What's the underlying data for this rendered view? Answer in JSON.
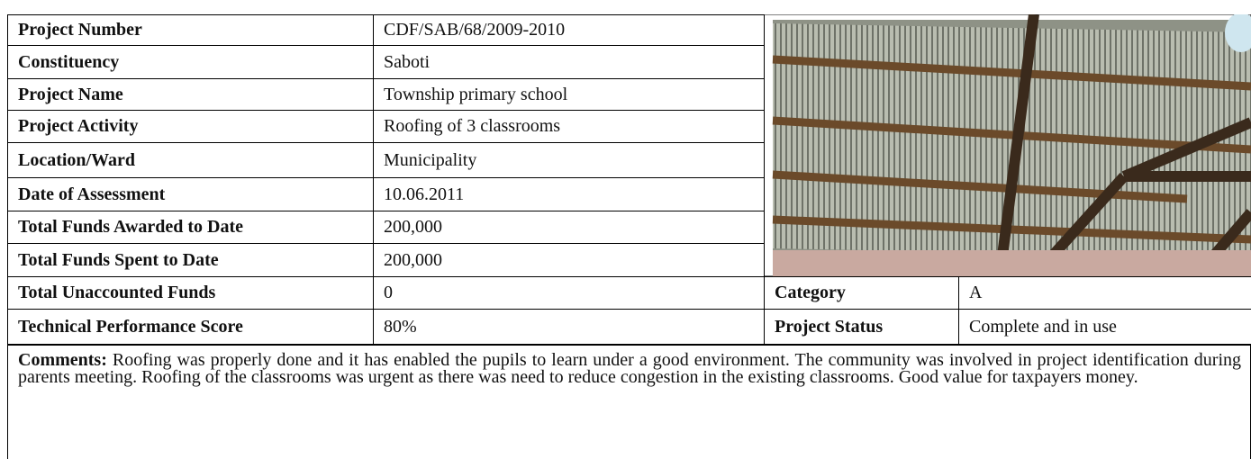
{
  "table": {
    "rows": [
      [
        "Project Number",
        "CDF/SAB/68/2009-2010"
      ],
      [
        "Constituency",
        "Saboti"
      ],
      [
        "Project Name",
        "Township primary school"
      ],
      [
        "Project Activity",
        "Roofing of 3 classrooms"
      ],
      [
        "Location/Ward",
        "Municipality"
      ],
      [
        "Date of Assessment",
        "10.06.2011"
      ],
      [
        "Total Funds Awarded to Date",
        "200,000"
      ],
      [
        "Total Funds Spent to Date",
        "200,000"
      ],
      [
        "Total Unaccounted Funds",
        "0"
      ],
      [
        "Technical Performance Score",
        "80%"
      ]
    ]
  },
  "side": {
    "rows": [
      [
        "Category",
        "A"
      ],
      [
        "Project Status",
        "Complete and in use"
      ]
    ]
  },
  "comments": {
    "label": "Comments:",
    "text": "Roofing was properly done and it has enabled the pupils to learn under a good environment. The community was involved in project identification during parents meeting. Roofing of the classrooms was urgent as there was need  to reduce congestion in the existing classrooms. Good value for taxpayers money."
  }
}
